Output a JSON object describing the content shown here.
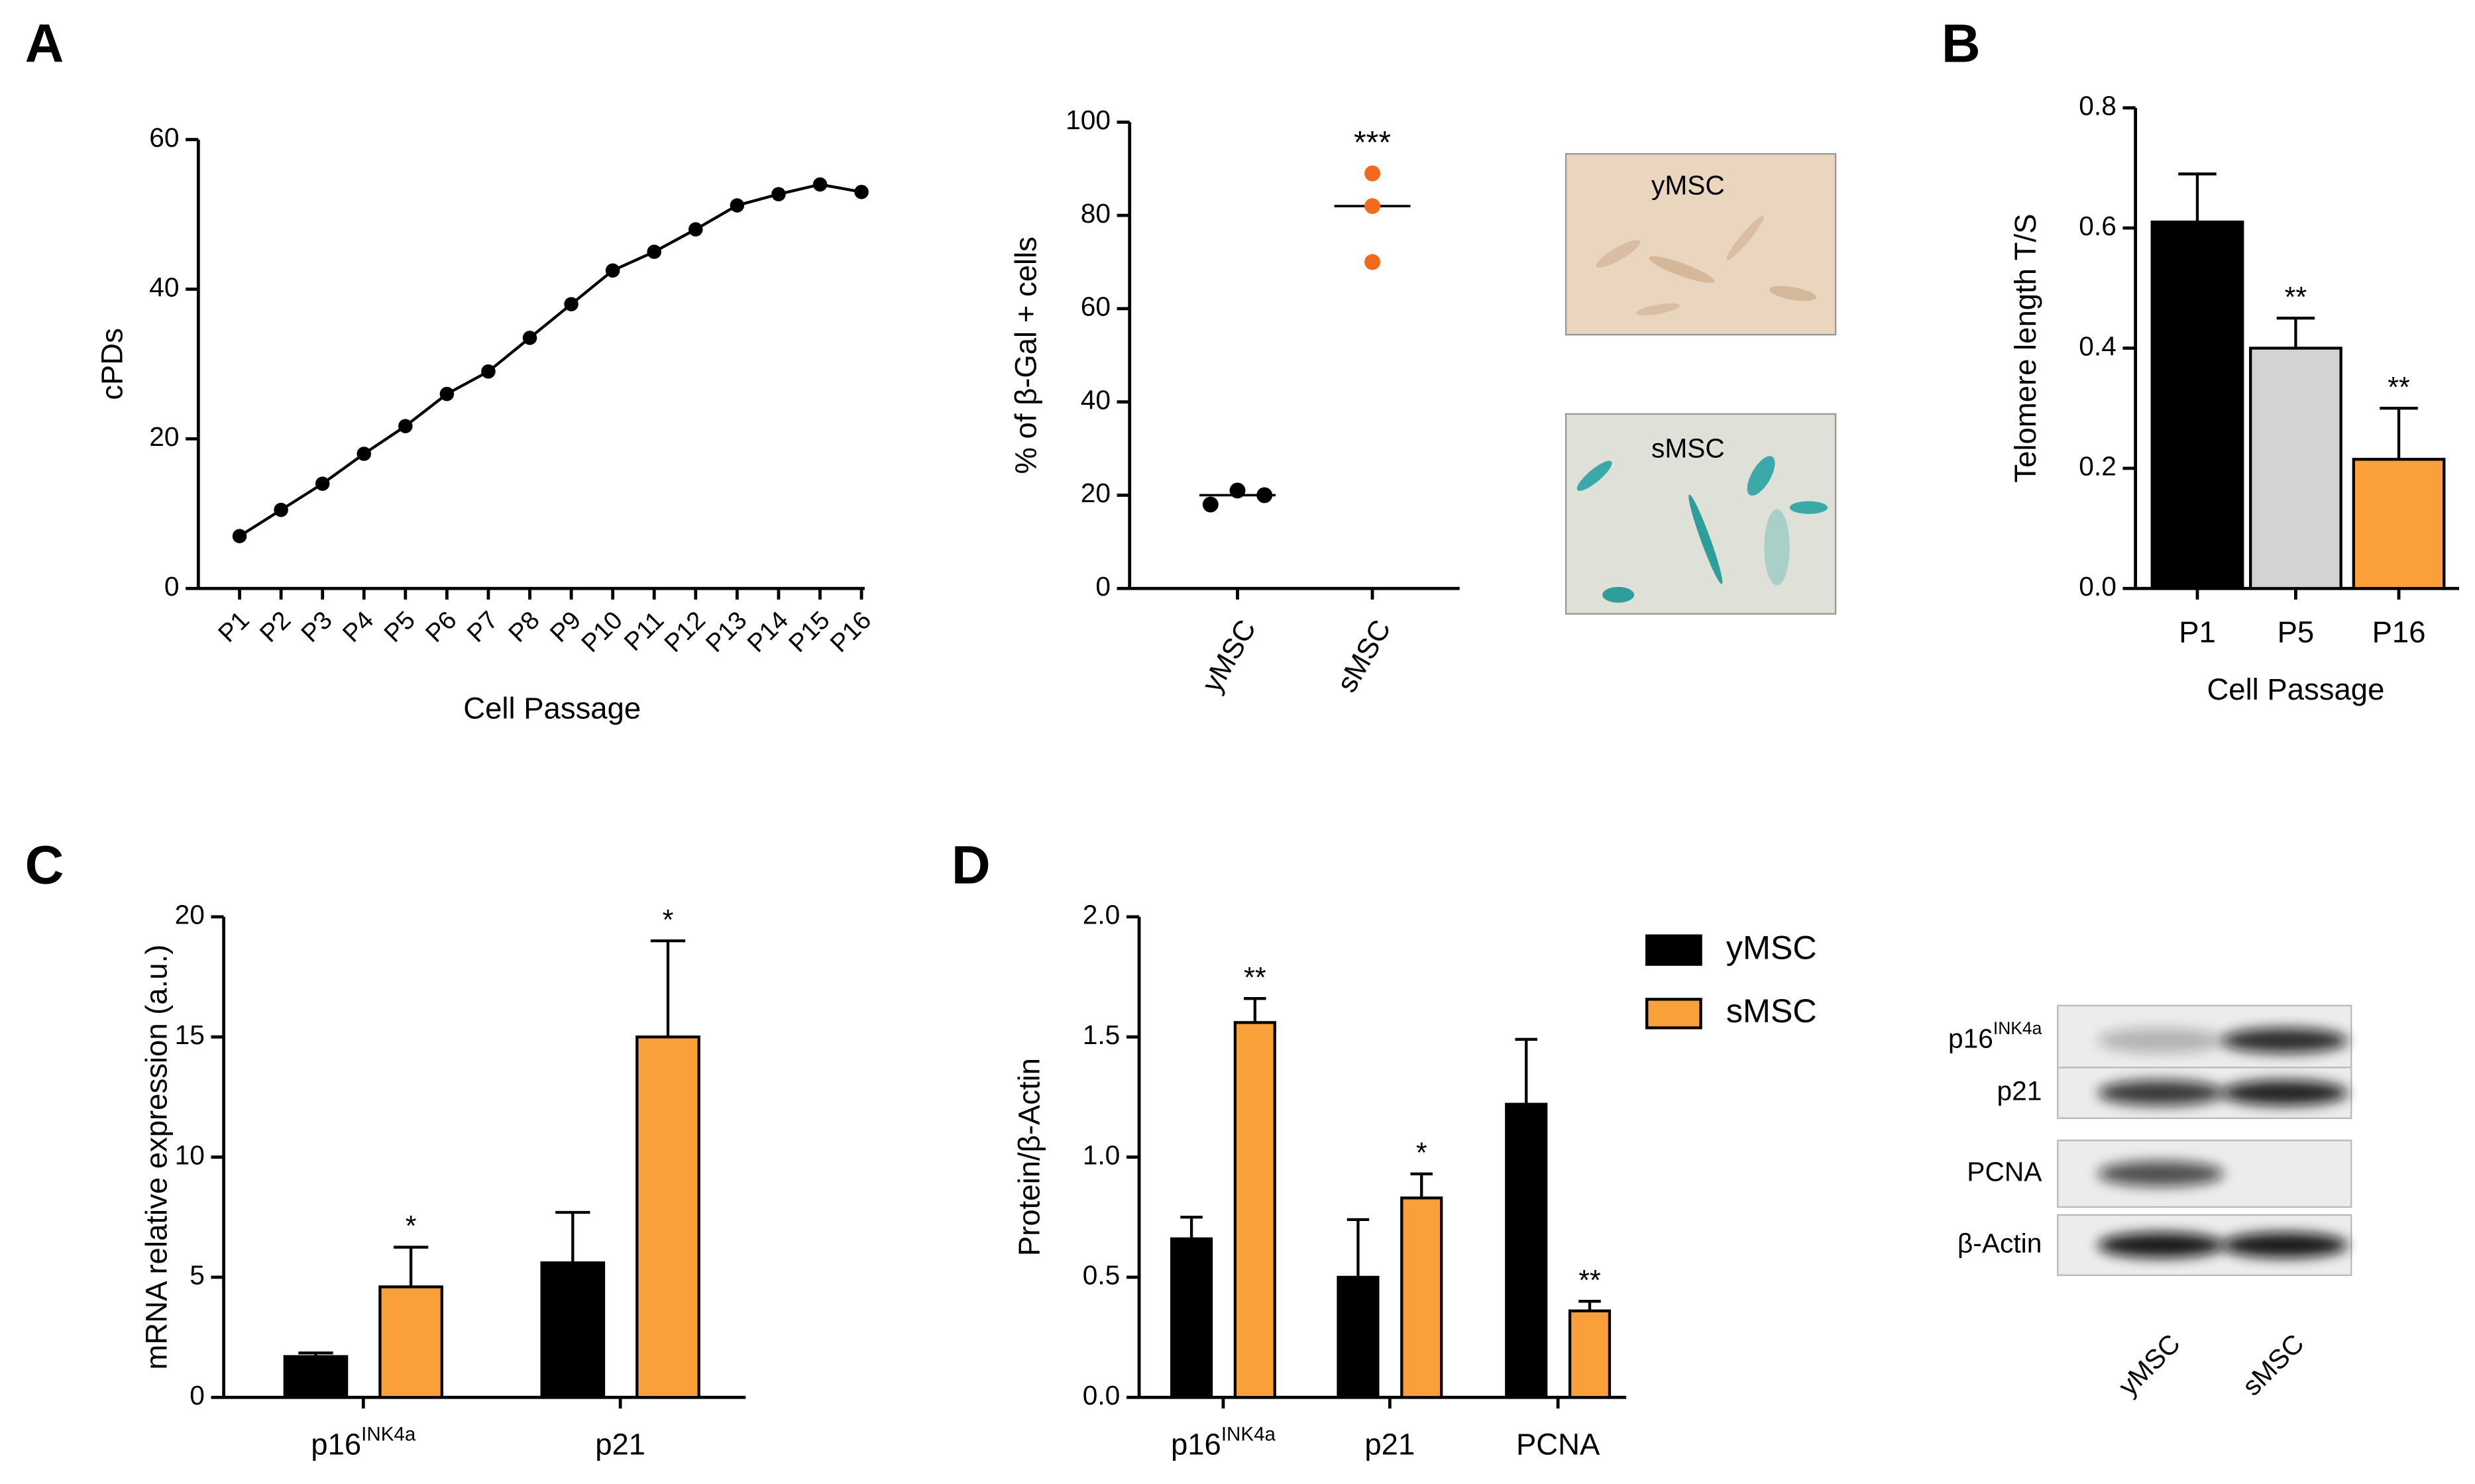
{
  "chart_data": [
    {
      "type": "line",
      "panel": "A",
      "ylabel": "cPDs",
      "xlabel": "Cell Passage",
      "categories": [
        "P1",
        "P2",
        "P3",
        "P4",
        "P5",
        "P6",
        "P7",
        "P8",
        "P9",
        "P10",
        "P11",
        "P12",
        "P13",
        "P14",
        "P15",
        "P16"
      ],
      "values": [
        7,
        10.5,
        14,
        18,
        21.7,
        26,
        29,
        33.5,
        38,
        42.5,
        45,
        48,
        51.2,
        52.7,
        54,
        53
      ],
      "color": "#000000",
      "ylim": [
        0,
        60
      ],
      "yticks": [
        0,
        20,
        40,
        60
      ]
    },
    {
      "type": "dot",
      "ylabel": "% of β-Gal + cells",
      "categories": [
        "yMSC",
        "sMSC"
      ],
      "points": [
        [
          18,
          21,
          20
        ],
        [
          89,
          82,
          70
        ]
      ],
      "means": [
        20,
        82
      ],
      "colors": [
        "#000000",
        "#f26b1d"
      ],
      "annotations": [
        null,
        "***"
      ],
      "ylim": [
        0,
        100
      ],
      "yticks": [
        0,
        20,
        40,
        60,
        80,
        100
      ]
    },
    {
      "type": "bar",
      "panel": "B",
      "ylabel": "Telomere length T/S",
      "xlabel": "Cell Passage",
      "categories": [
        "P1",
        "P5",
        "P16"
      ],
      "values": [
        0.61,
        0.4,
        0.215
      ],
      "errors": [
        0.08,
        0.05,
        0.085
      ],
      "colors": [
        "#000000",
        "#d3d3d3",
        "#f9a03a"
      ],
      "annotations": [
        null,
        "**",
        "**"
      ],
      "ylim": [
        0,
        0.8
      ],
      "yticks": [
        {
          "value": 0,
          "label": "0.0"
        },
        0.2,
        0.4,
        0.6,
        0.8
      ]
    },
    {
      "type": "grouped_bar",
      "panel": "C",
      "ylabel": "mRNA relative expression (a.u.)",
      "categories": [
        [
          "p16",
          "INK4a"
        ],
        [
          "p21"
        ]
      ],
      "series": [
        {
          "name": "yMSC",
          "color": "#000000",
          "values": [
            1.7,
            5.6
          ],
          "errors": [
            0.15,
            2.1
          ],
          "annotations": [
            null,
            null
          ]
        },
        {
          "name": "sMSC",
          "color": "#f9a03a",
          "values": [
            4.6,
            15.0
          ],
          "errors": [
            1.65,
            4.0
          ],
          "annotations": [
            "*",
            "*"
          ]
        }
      ],
      "ylim": [
        0,
        20
      ],
      "yticks": [
        0,
        5,
        10,
        15,
        20
      ]
    },
    {
      "type": "grouped_bar",
      "panel": "D",
      "ylabel": "Protein/β-Actin",
      "categories": [
        [
          "p16",
          "INK4a"
        ],
        [
          "p21"
        ],
        [
          "PCNA"
        ]
      ],
      "series": [
        {
          "name": "yMSC",
          "color": "#000000",
          "values": [
            0.66,
            0.5,
            1.22
          ],
          "errors": [
            0.09,
            0.24,
            0.27
          ],
          "annotations": [
            null,
            null,
            null
          ]
        },
        {
          "name": "sMSC",
          "color": "#f9a03a",
          "values": [
            1.56,
            0.83,
            0.36
          ],
          "errors": [
            0.1,
            0.1,
            0.04
          ],
          "annotations": [
            "**",
            "*",
            "**"
          ]
        }
      ],
      "ylim": [
        0,
        2
      ],
      "yticks": [
        {
          "value": 0,
          "label": "0.0"
        },
        0.5,
        {
          "value": 1,
          "label": "1.0"
        },
        1.5,
        {
          "value": 2,
          "label": "2.0"
        }
      ]
    }
  ],
  "micrographs": [
    "yMSC",
    "sMSC"
  ],
  "blot": {
    "rows": [
      [
        "p16",
        "INK4a"
      ],
      [
        "p21"
      ],
      [
        "PCNA"
      ],
      [
        "β-Actin"
      ]
    ],
    "columns": [
      "yMSC",
      "sMSC"
    ]
  }
}
